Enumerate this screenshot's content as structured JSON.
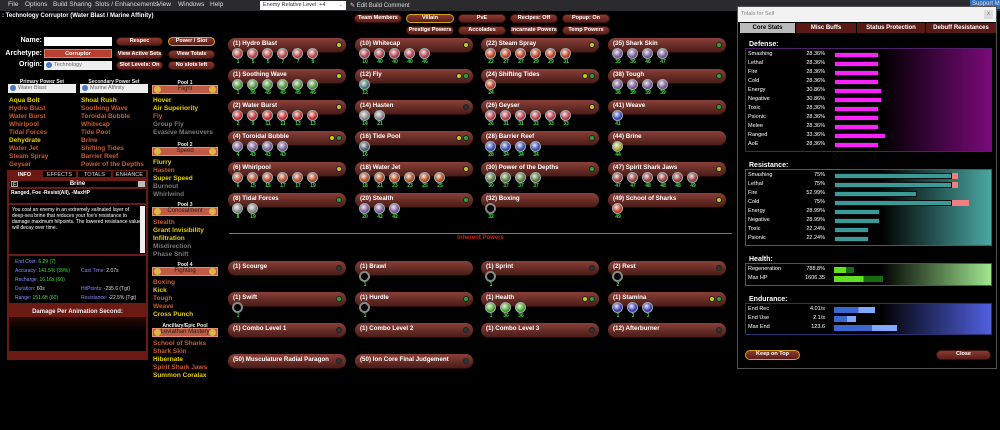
{
  "menu": [
    "File",
    "Options",
    "Build Sharing",
    "Slots / Enhancements",
    "View",
    "Windows",
    "Help"
  ],
  "enemy_level": "Enemy Relative Level: +4",
  "edit_comment": "Edit Build Comment",
  "support": "Support Me",
  "title": ": Technology Corruptor (Water Blast / Marine Affinity)",
  "char": {
    "name_label": "Name:",
    "name_value": "",
    "archetype_label": "Archetype:",
    "archetype": "Corruptor",
    "origin_label": "Origin:",
    "origin": "Technology",
    "buttons": {
      "respec": "Respec",
      "power_slot": "Power / Slot",
      "view_active_sets": "View Active Sets",
      "view_totals": "View Totals",
      "slot_levels": "Slot Levels: On",
      "no_slots": "No slots left"
    }
  },
  "top_buttons": [
    {
      "label": "Team Members"
    },
    {
      "label": "Villain",
      "active": true
    },
    {
      "label": "PvE"
    },
    {
      "label": "Recipes: Off"
    },
    {
      "label": "Popup: On"
    },
    {
      "label": "Prestige Powers"
    },
    {
      "label": "Accolades"
    },
    {
      "label": "Incarnate Powers"
    },
    {
      "label": "Temp Powers"
    }
  ],
  "sets": {
    "primary": {
      "header": "Primary Power Set",
      "name": "Water Blast",
      "powers": [
        [
          "Aqua Bolt",
          "avail"
        ],
        [
          "Hydro Blast",
          "taken"
        ],
        [
          "Water Burst",
          "taken"
        ],
        [
          "Whirlpool",
          "taken"
        ],
        [
          "Tidal Forces",
          "taken"
        ],
        [
          "Dehydrate",
          "avail"
        ],
        [
          "Water Jet",
          "taken"
        ],
        [
          "Steam Spray",
          "taken"
        ],
        [
          "Geyser",
          "taken"
        ]
      ]
    },
    "secondary": {
      "header": "Secondary Power Set",
      "name": "Marine Affinity",
      "powers": [
        [
          "Shoal Rush",
          "avail"
        ],
        [
          "Soothing Wave",
          "taken"
        ],
        [
          "Toroidal Bubble",
          "taken"
        ],
        [
          "Whitecap",
          "taken"
        ],
        [
          "Tide Pool",
          "taken"
        ],
        [
          "Brine",
          "taken"
        ],
        [
          "Shifting Tides",
          "taken"
        ],
        [
          "Barrier Reef",
          "taken"
        ],
        [
          "Power of the Depths",
          "taken"
        ]
      ]
    },
    "pools": [
      {
        "header": "Pool 1",
        "name": "Flight",
        "powers": [
          [
            "Hover",
            "avail"
          ],
          [
            "Air Superiority",
            "avail"
          ],
          [
            "Fly",
            "taken"
          ],
          [
            "Group Fly",
            "off"
          ],
          [
            "Evasive Maneuvers",
            "off"
          ]
        ]
      },
      {
        "header": "Pool 2",
        "name": "Speed",
        "powers": [
          [
            "Flurry",
            "avail"
          ],
          [
            "Hasten",
            "taken"
          ],
          [
            "Super Speed",
            "avail"
          ],
          [
            "Burnout",
            "off"
          ],
          [
            "Whirlwind",
            "off"
          ]
        ]
      },
      {
        "header": "Pool 3",
        "name": "Concealment",
        "powers": [
          [
            "Stealth",
            "taken"
          ],
          [
            "Grant Invisibility",
            "avail"
          ],
          [
            "Infiltration",
            "avail"
          ],
          [
            "Misdirection",
            "off"
          ],
          [
            "Phase Shift",
            "off"
          ]
        ]
      },
      {
        "header": "Pool 4",
        "name": "Fighting",
        "powers": [
          [
            "Boxing",
            "taken"
          ],
          [
            "Kick",
            "avail"
          ],
          [
            "Tough",
            "taken"
          ],
          [
            "Weave",
            "taken"
          ],
          [
            "Cross Punch",
            "avail"
          ]
        ]
      },
      {
        "header": "Ancillary/Epic Pool",
        "name": "Leviathan Mastery",
        "powers": [
          [
            "School of Sharks",
            "taken"
          ],
          [
            "Shark Skin",
            "taken"
          ],
          [
            "Hibernate",
            "avail"
          ],
          [
            "Spirit Shark Jaws",
            "taken"
          ],
          [
            "Summon Coralax",
            "avail"
          ]
        ]
      }
    ]
  },
  "info": {
    "tabs": [
      "INFO",
      "EFFECTS",
      "TOTALS",
      "ENHANCE"
    ],
    "power": "Brine",
    "flag": "F",
    "summary": "Ranged, Foe -Resist(All), -MaxHP",
    "description": "You coat an enemy in an extremely salinated layer of deep-sea brine that reduces your foe's resistance to damage maximum hitpoints. The lowered resistance value will decay over time.",
    "stats": [
      {
        "k": "End Cost:",
        "v": "6.29 (7)",
        "g": true
      },
      {
        "k": "Accuracy:",
        "v": "141.5% (39%)",
        "g": true
      },
      {
        "k": "Cast Time:",
        "v": "2.07s"
      },
      {
        "k": "Recharge:",
        "v": "16.16s (60)",
        "g": true
      },
      {
        "k": "Duration:",
        "v": "60s"
      },
      {
        "k": "HitPoints:",
        "v": "-235.6 (Tgt)"
      },
      {
        "k": "Range:",
        "v": "151.6ft (60)",
        "g": true
      },
      {
        "k": "Resistance:",
        "v": "-22.5% (Tgt)"
      }
    ],
    "dps_label": "Damage Per Animation Second:"
  },
  "powers": [
    {
      "name": "(1) Hydro Blast",
      "slots": [
        1,
        5,
        5,
        7,
        7,
        9
      ],
      "color": "#c84848",
      "dots": [
        "y"
      ]
    },
    {
      "name": "(1) Soothing Wave",
      "slots": [
        1,
        36,
        45,
        45,
        45,
        46
      ],
      "color": "#5aa040",
      "dots": [
        "y"
      ]
    },
    {
      "name": "(2) Water Burst",
      "slots": [
        2,
        9,
        11,
        11,
        13,
        13
      ],
      "color": "#d03030",
      "dots": [
        "y"
      ]
    },
    {
      "name": "(4) Toroidal Bubble",
      "slots": [
        4,
        43,
        43,
        43
      ],
      "color": "#8060a0",
      "dots": [
        "y",
        "g"
      ]
    },
    {
      "name": "(6) Whirlpool",
      "slots": [
        6,
        15,
        15,
        17,
        17,
        19
      ],
      "color": "#c05030",
      "dots": [
        "y"
      ]
    },
    {
      "name": "(8) Tidal Forces",
      "slots": [
        8,
        19
      ],
      "color": "#909090",
      "dots": [
        "g"
      ]
    },
    {
      "name": "(10) Whitecap",
      "slots": [
        10,
        40,
        40,
        40,
        46
      ],
      "color": "#c04050",
      "dots": [
        "y"
      ]
    },
    {
      "name": "(12) Fly",
      "slots": [
        12
      ],
      "color": "#4a8080",
      "dots": [
        "y",
        "g"
      ]
    },
    {
      "name": "(14) Hasten",
      "slots": [
        14,
        21
      ],
      "color": "#909090",
      "dots": [
        "d"
      ]
    },
    {
      "name": "(16) Tide Pool",
      "slots": [
        16
      ],
      "color": "#506070",
      "dots": [
        "y",
        "g"
      ]
    },
    {
      "name": "(18) Water Jet",
      "slots": [
        18,
        21,
        23,
        23,
        25,
        25
      ],
      "color": "#c05020",
      "dots": [
        "y"
      ]
    },
    {
      "name": "(20) Stealth",
      "slots": [
        20,
        42,
        42
      ],
      "color": "#8060a0",
      "dots": [
        "g"
      ]
    },
    {
      "name": "(22) Steam Spray",
      "slots": [
        22,
        27,
        27,
        29,
        29,
        31
      ],
      "color": "#d04020",
      "dots": [
        "y"
      ]
    },
    {
      "name": "(24) Shifting Tides",
      "slots": [
        24
      ],
      "color": "#d04020",
      "dots": [
        "y",
        "g"
      ]
    },
    {
      "name": "(26) Geyser",
      "slots": [
        26,
        31,
        31,
        33,
        33,
        33
      ],
      "color": "#c04050",
      "dots": [
        "y"
      ]
    },
    {
      "name": "(28) Barrier Reef",
      "slots": [
        28,
        34,
        34,
        34
      ],
      "color": "#4050c0",
      "dots": [
        "g"
      ]
    },
    {
      "name": "(30) Power of the Depths",
      "slots": [
        30,
        37,
        37,
        37
      ],
      "color": "#608040",
      "dots": [
        "g"
      ]
    },
    {
      "name": "(32) Boxing",
      "slots": [
        32
      ],
      "empty": true,
      "color": "#000",
      "dots": []
    },
    {
      "name": "(35) Shark Skin",
      "slots": [
        35,
        36,
        46,
        47
      ],
      "color": "#8060a0",
      "dots": [
        "g"
      ]
    },
    {
      "name": "(38) Tough",
      "slots": [
        38,
        39,
        39,
        39
      ],
      "color": "#8060a0",
      "dots": [
        "g"
      ]
    },
    {
      "name": "(41) Weave",
      "slots": [
        41
      ],
      "color": "#4050c0",
      "dots": [
        "g"
      ]
    },
    {
      "name": "(44) Brine",
      "slots": [
        44
      ],
      "color": "#b0b030",
      "dots": []
    },
    {
      "name": "(47) Spirit Shark Jaws",
      "slots": [
        47,
        47,
        48,
        48,
        48,
        49
      ],
      "color": "#a04040",
      "dots": [
        "y"
      ]
    },
    {
      "name": "(49) School of Sharks",
      "slots": [
        49
      ],
      "color": "#d04020",
      "dots": [
        "y"
      ]
    }
  ],
  "inherent_label": "Inherent Powers",
  "inherent": [
    {
      "name": "(1) Scourge",
      "slots": [],
      "dots": [
        "d"
      ]
    },
    {
      "name": "(1) Brawl",
      "slots": [
        1
      ],
      "empty": true,
      "dots": []
    },
    {
      "name": "(1) Sprint",
      "slots": [
        1
      ],
      "empty": true,
      "dots": [
        "d"
      ]
    },
    {
      "name": "(2) Rest",
      "slots": [
        2
      ],
      "empty": true,
      "dots": [
        "d"
      ]
    },
    {
      "name": "(1) Swift",
      "slots": [
        1
      ],
      "empty": true,
      "dots": [
        "g"
      ]
    },
    {
      "name": "(1) Hurdle",
      "slots": [
        1
      ],
      "empty": true,
      "dots": [
        "g"
      ]
    },
    {
      "name": "(1) Health",
      "slots": [
        1,
        36,
        36
      ],
      "color": "#50b030",
      "dots": [
        "y",
        "g"
      ]
    },
    {
      "name": "(1) Stamina",
      "slots": [
        1,
        3,
        3
      ],
      "color": "#4040c0",
      "dots": [
        "y",
        "g"
      ]
    },
    {
      "name": "(1) Combo Level 1",
      "slots": [],
      "dots": [
        "d"
      ]
    },
    {
      "name": "(1) Combo Level 2",
      "slots": [],
      "dots": [
        "d"
      ]
    },
    {
      "name": "(1) Combo Level 3",
      "slots": [],
      "dots": [
        "d"
      ]
    },
    {
      "name": "(12) Afterburner",
      "slots": [],
      "dots": [
        "d"
      ]
    },
    {
      "name": "(50) Musculature Radial Paragon",
      "slots": [],
      "dots": [
        "d"
      ]
    },
    {
      "name": "(50) Ion Core Final Judgement",
      "slots": [],
      "dots": [
        "d"
      ]
    }
  ],
  "totals": {
    "title": "Totals for Self",
    "close": "x",
    "tabs": [
      "Core Stats",
      "Misc Buffs",
      "Status Protection",
      "Debuff Resistances"
    ],
    "defense": {
      "label": "Defense:",
      "color": "#ff20ff",
      "rows": [
        [
          "Smashing",
          "28.36%",
          28.36
        ],
        [
          "Lethal",
          "28.36%",
          28.36
        ],
        [
          "Fire",
          "28.36%",
          28.36
        ],
        [
          "Cold",
          "28.36%",
          28.36
        ],
        [
          "Energy",
          "30.86%",
          30.86
        ],
        [
          "Negative",
          "30.86%",
          30.86
        ],
        [
          "Toxic",
          "28.36%",
          28.36
        ],
        [
          "Psionic",
          "28.36%",
          28.36
        ],
        [
          "Melee",
          "28.36%",
          28.36
        ],
        [
          "Ranged",
          "33.36%",
          33.36
        ],
        [
          "AoE",
          "28.36%",
          28.36
        ]
      ]
    },
    "resistance": {
      "label": "Resistance:",
      "color": "#3a9a98",
      "rows": [
        [
          "Smashing",
          "75%",
          75,
          79
        ],
        [
          "Lethal",
          "75%",
          75,
          79
        ],
        [
          "Fire",
          "52.99%",
          52.99
        ],
        [
          "Cold",
          "75%",
          75,
          86
        ],
        [
          "Energy",
          "28.99%",
          28.99
        ],
        [
          "Negative",
          "28.99%",
          28.99
        ],
        [
          "Toxic",
          "22.24%",
          22.24
        ],
        [
          "Psionic",
          "22.24%",
          22.24
        ]
      ]
    },
    "health": {
      "label": "Health:",
      "rows": [
        [
          "Regeneration",
          "788.8%",
          0.13
        ],
        [
          "Max HP",
          "1606.35",
          0.31
        ]
      ]
    },
    "endurance": {
      "label": "Endurance:",
      "rows": [
        [
          "End Rec",
          "4.01/s",
          0.26
        ],
        [
          "End Use",
          "2.1/s",
          0.14
        ],
        [
          "Max End",
          "123.6",
          0.4
        ]
      ]
    },
    "keep_on_top": "Keep on Top",
    "close_button": "Close"
  }
}
